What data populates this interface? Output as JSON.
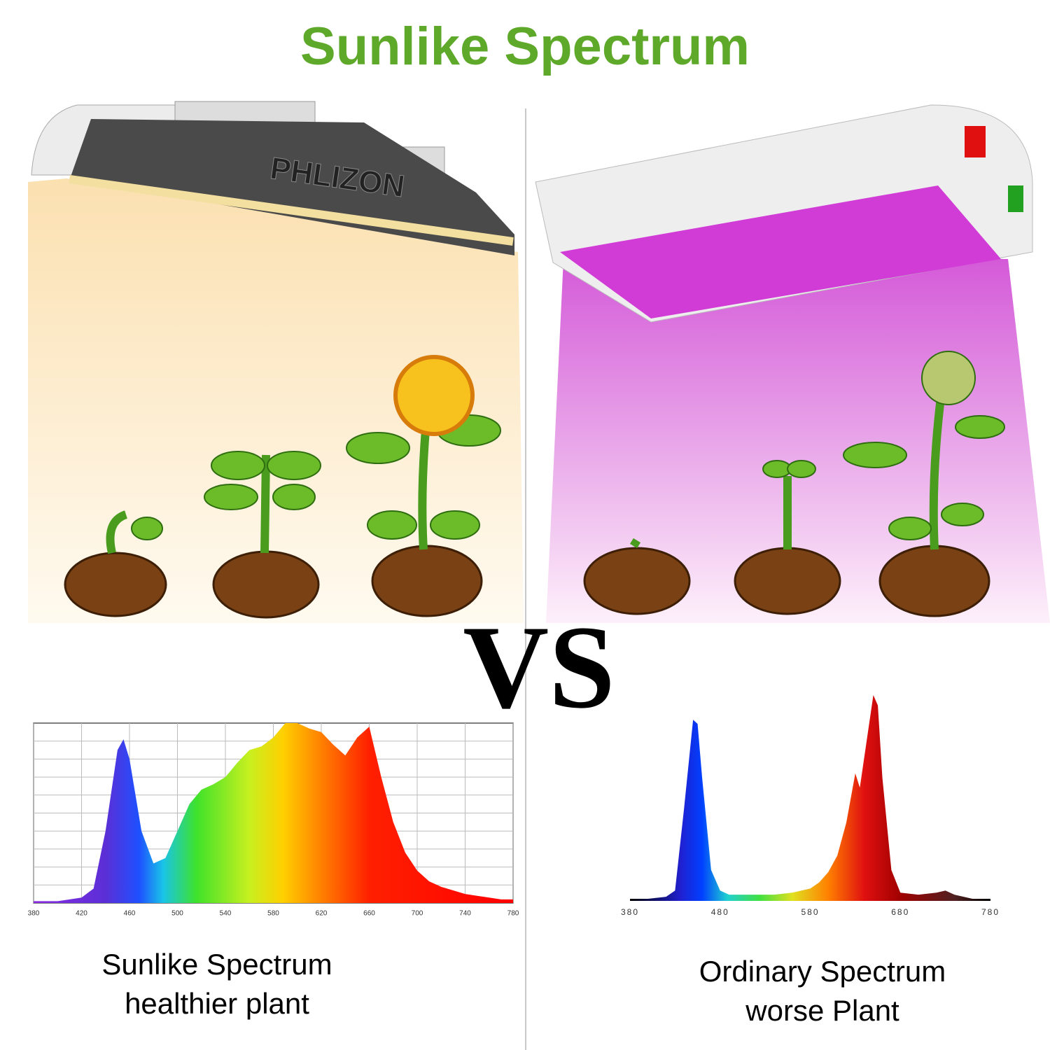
{
  "header": {
    "title": "Sunlike Spectrum"
  },
  "brand": "PHLIZON",
  "vs": "VS",
  "chart_data": [
    {
      "type": "area",
      "grid": true,
      "x": [
        380,
        390,
        400,
        410,
        420,
        430,
        440,
        450,
        455,
        460,
        470,
        480,
        490,
        500,
        510,
        520,
        530,
        540,
        550,
        560,
        570,
        580,
        590,
        600,
        610,
        620,
        630,
        640,
        650,
        660,
        670,
        680,
        690,
        700,
        710,
        720,
        730,
        740,
        750,
        760,
        770,
        780
      ],
      "values": [
        1,
        1,
        1,
        2,
        3,
        8,
        40,
        85,
        91,
        80,
        40,
        22,
        25,
        40,
        55,
        63,
        66,
        70,
        78,
        85,
        87,
        92,
        100,
        100,
        97,
        95,
        88,
        82,
        92,
        98,
        70,
        45,
        28,
        18,
        12,
        9,
        7,
        5,
        4,
        3,
        2,
        2
      ],
      "xlim": [
        380,
        780
      ],
      "ylim": [
        0,
        100
      ],
      "xticks": [
        380,
        420,
        460,
        500,
        540,
        580,
        620,
        660,
        700,
        740,
        780
      ]
    },
    {
      "type": "area",
      "grid": false,
      "x": [
        380,
        400,
        420,
        430,
        440,
        450,
        455,
        460,
        470,
        480,
        490,
        500,
        520,
        540,
        560,
        580,
        590,
        600,
        610,
        620,
        630,
        635,
        640,
        650,
        655,
        660,
        670,
        680,
        700,
        720,
        730,
        740,
        760,
        780
      ],
      "values": [
        1,
        1,
        2,
        5,
        45,
        88,
        86,
        60,
        15,
        5,
        3,
        3,
        3,
        3,
        4,
        6,
        9,
        14,
        22,
        38,
        62,
        55,
        70,
        100,
        95,
        60,
        15,
        4,
        3,
        4,
        5,
        3,
        1,
        1
      ],
      "xlim": [
        380,
        780
      ],
      "ylim": [
        0,
        100
      ],
      "xticks": [
        380,
        480,
        580,
        680,
        780
      ]
    }
  ],
  "captions": [
    {
      "line1": "Sunlike Spectrum",
      "line2": "healthier plant"
    },
    {
      "line1": "Ordinary Spectrum",
      "line2": "worse Plant"
    }
  ]
}
